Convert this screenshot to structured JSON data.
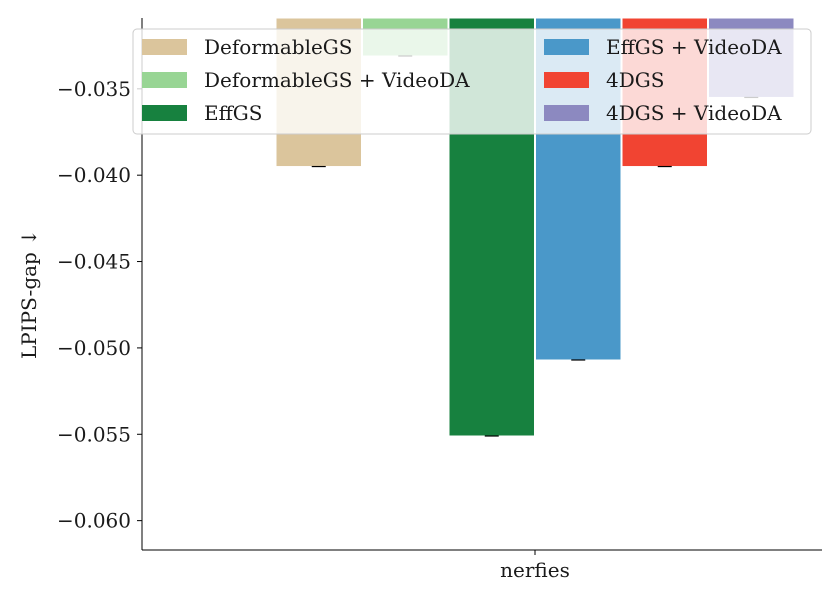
{
  "chart_data": {
    "type": "bar",
    "categories": [
      "nerfies"
    ],
    "xlabel": "",
    "ylabel": "LPIPS-gap ↓",
    "ylim": [
      -0.0617,
      -0.0309
    ],
    "yticks": [
      -0.035,
      -0.04,
      -0.045,
      -0.05,
      -0.055,
      -0.06
    ],
    "ytick_labels": [
      "−0.035",
      "−0.040",
      "−0.045",
      "−0.050",
      "−0.055",
      "−0.060"
    ],
    "grid": false,
    "legend_position": "top",
    "series": [
      {
        "name": "DeformableGS",
        "values": [
          -0.0395
        ],
        "color": "#dbc59c",
        "error": [
          0.0
        ]
      },
      {
        "name": "DeformableGS + VideoDA",
        "values": [
          -0.0331
        ],
        "color": "#98d594",
        "error": [
          0.0
        ]
      },
      {
        "name": "EffGS",
        "values": [
          -0.0551
        ],
        "color": "#17813f",
        "error": [
          0.0
        ]
      },
      {
        "name": "EffGS + VideoDA",
        "values": [
          -0.0507
        ],
        "color": "#4a98c9",
        "error": [
          0.0
        ]
      },
      {
        "name": "4DGS",
        "values": [
          -0.0395
        ],
        "color": "#f14432",
        "error": [
          0.0
        ]
      },
      {
        "name": "4DGS + VideoDA",
        "values": [
          -0.0355
        ],
        "color": "#8c89c0",
        "error": [
          0.0
        ]
      }
    ]
  }
}
